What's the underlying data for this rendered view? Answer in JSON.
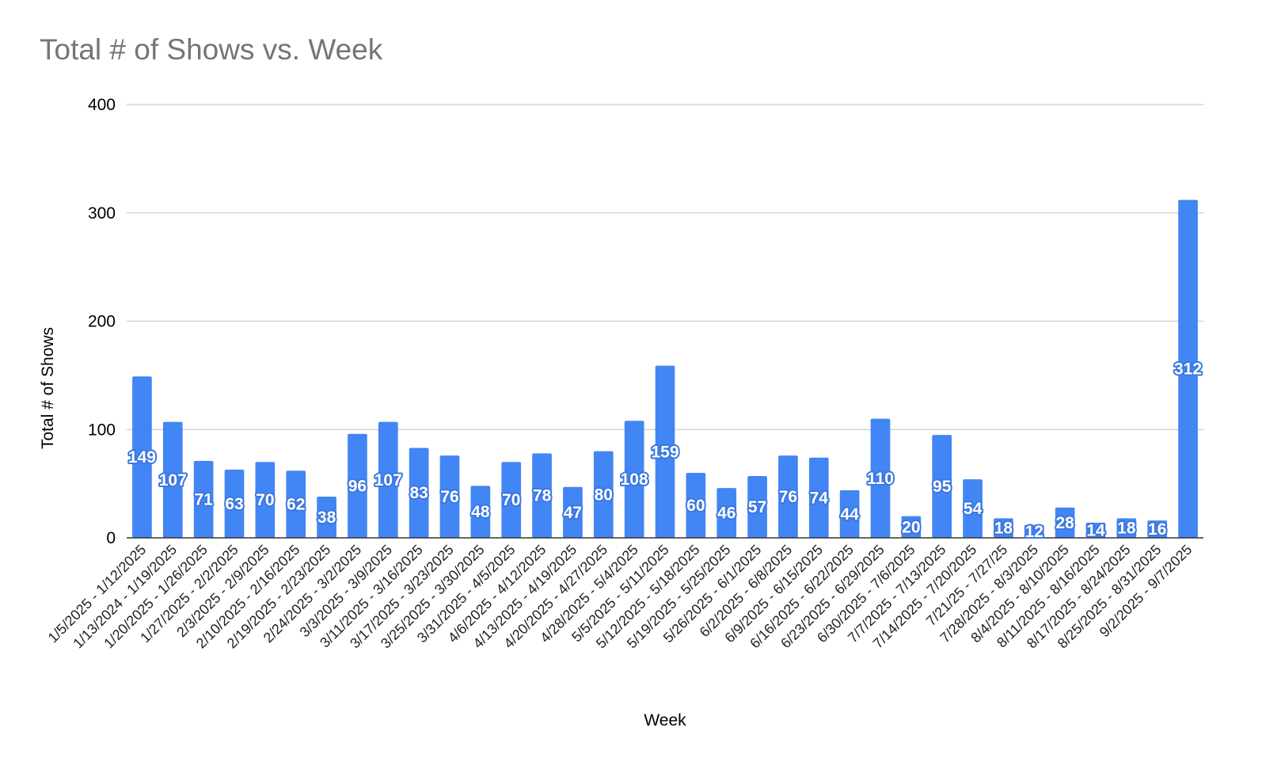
{
  "chart_data": {
    "type": "bar",
    "title": "Total # of Shows vs. Week",
    "xlabel": "Week",
    "ylabel": "Total # of Shows",
    "ylim": [
      0,
      400
    ],
    "yticks": [
      0,
      100,
      200,
      300,
      400
    ],
    "grid": true,
    "legend": "none",
    "bar_color": "#4285f4",
    "categories": [
      "1/5/2025 - 1/12/2025",
      "1/13/2024 - 1/19/2025",
      "1/20/2025 - 1/26/2025",
      "1/27/2025 - 2/2/2025",
      "2/3/2025 - 2/9/2025",
      "2/10/2025 - 2/16/2025",
      "2/19/2025 - 2/23/2025",
      "2/24/2025 - 3/2/2025",
      "3/3/2025 - 3/9/2025",
      "3/11/2025 - 3/16/2025",
      "3/17/2025 - 3/23/2025",
      "3/25/2025 - 3/30/2025",
      "3/31/2025 - 4/5/2025",
      "4/6/2025 - 4/12/2025",
      "4/13/2025 - 4/19/2025",
      "4/20/2025 - 4/27/2025",
      "4/28/2025 - 5/4/2025",
      "5/5/2025 - 5/11/2025",
      "5/12/2025 - 5/18/2025",
      "5/19/2025 - 5/25/2025",
      "5/26/2025 - 6/1/2025",
      "6/2/2025 - 6/8/2025",
      "6/9/2025 - 6/15/2025",
      "6/16/2025 - 6/22/2025",
      "6/23/2025 - 6/29/2025",
      "6/30/2025 - 7/6/2025",
      "7/7/2025 - 7/13/2025",
      "7/14/2025 - 7/20/2025",
      "7/21/25 - 7/27/25",
      "7/28/2025 - 8/3/2025",
      "8/4/2025 - 8/10/2025",
      "8/11/2025 - 8/16/2025",
      "8/17/2025 - 8/24/2025",
      "8/25/2025 - 8/31/2025",
      "9/2/2025 - 9/7/2025"
    ],
    "values": [
      149,
      107,
      71,
      63,
      70,
      62,
      38,
      96,
      107,
      83,
      76,
      48,
      70,
      78,
      47,
      80,
      108,
      159,
      60,
      46,
      57,
      76,
      74,
      44,
      110,
      20,
      95,
      54,
      18,
      12,
      28,
      14,
      18,
      16,
      312
    ]
  }
}
